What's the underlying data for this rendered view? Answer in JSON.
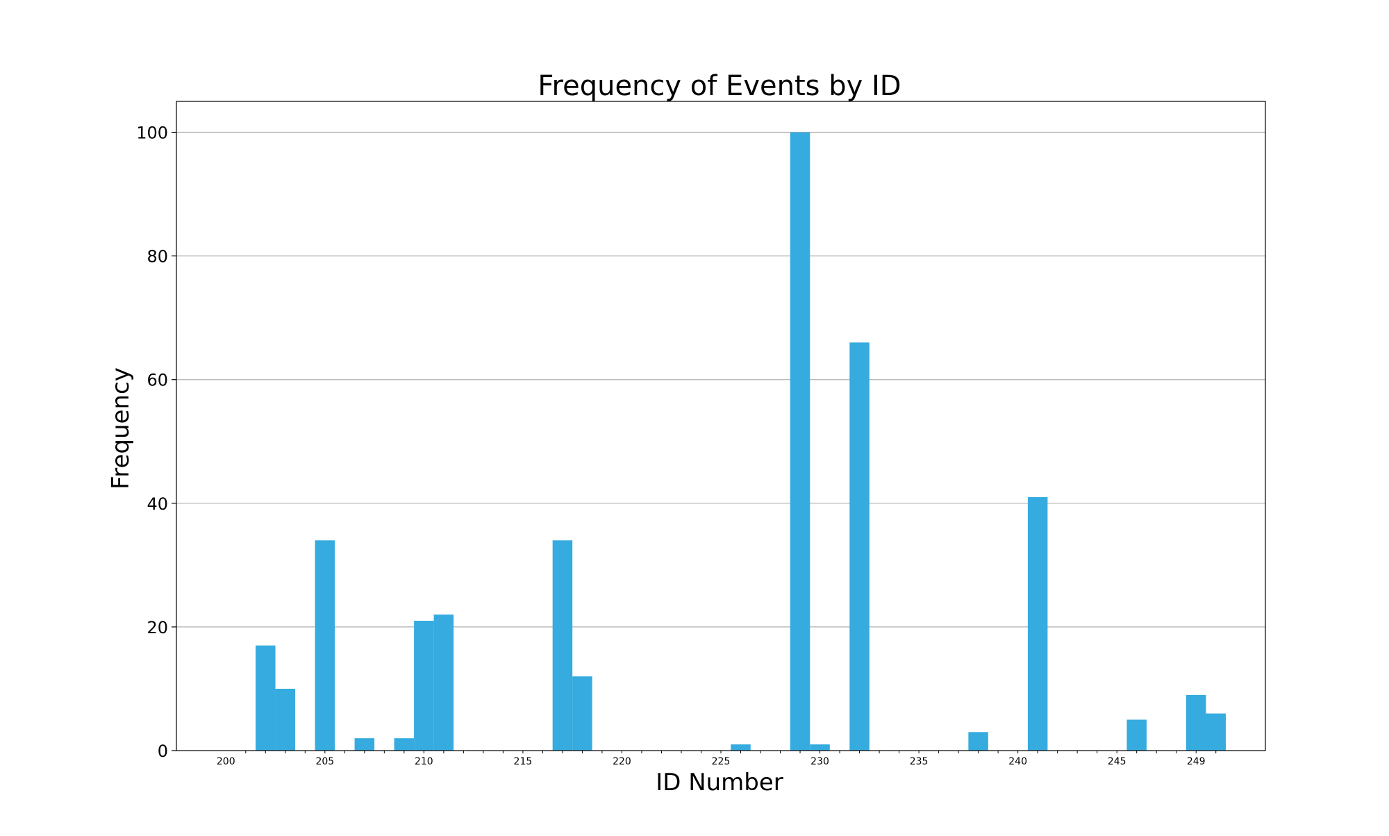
{
  "chart_data": {
    "type": "bar",
    "title": "Frequency of Events by ID",
    "xlabel": "ID Number",
    "ylabel": "Frequency",
    "x": [
      200,
      201,
      202,
      203,
      204,
      205,
      206,
      207,
      208,
      209,
      210,
      211,
      212,
      213,
      214,
      215,
      216,
      217,
      218,
      219,
      220,
      221,
      222,
      223,
      224,
      225,
      226,
      227,
      228,
      229,
      230,
      231,
      232,
      233,
      234,
      235,
      236,
      237,
      238,
      239,
      240,
      241,
      242,
      243,
      244,
      245,
      246,
      247,
      248,
      249
    ],
    "values": [
      0,
      17,
      10,
      0,
      34,
      0,
      2,
      0,
      2,
      21,
      22,
      0,
      0,
      0,
      0,
      0,
      34,
      12,
      0,
      0,
      0,
      0,
      0,
      0,
      0,
      1,
      0,
      0,
      100,
      1,
      0,
      66,
      0,
      0,
      0,
      0,
      0,
      3,
      0,
      0,
      41,
      0,
      0,
      0,
      0,
      5,
      0,
      0,
      9,
      6
    ],
    "xlim": [
      197.5,
      252.5
    ],
    "ylim": [
      0,
      105
    ],
    "xticks": [
      200,
      205,
      210,
      215,
      220,
      225,
      230,
      235,
      240,
      245,
      249
    ],
    "yticks": [
      0,
      20,
      40,
      60,
      80,
      100
    ],
    "grid": "y-major",
    "bar_color": "#35abdf",
    "grid_color": "#b0b0b0"
  }
}
